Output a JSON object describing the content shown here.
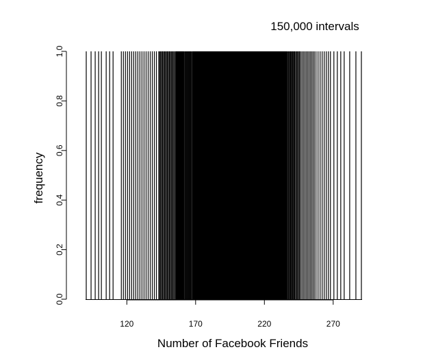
{
  "chart_data": {
    "type": "bar",
    "title": "150,000 intervals",
    "xlabel": "Number of Facebook Friends",
    "ylabel": "frequency",
    "xlim": [
      90,
      291
    ],
    "ylim": [
      0,
      1
    ],
    "x_ticks": [
      120,
      170,
      220,
      270
    ],
    "y_ticks": [
      0.0,
      0.2,
      0.4,
      0.6,
      0.8,
      1.0
    ],
    "y_tick_labels": [
      "0.0",
      "0.2",
      "0.4",
      "0.6",
      "0.8",
      "1.0"
    ],
    "bar_value": 1.0,
    "x": [
      90.5,
      94,
      97,
      99.5,
      101.5,
      105,
      107.5,
      110,
      116,
      117.5,
      119,
      120.5,
      122,
      123.5,
      125,
      126.5,
      128,
      129.5,
      131,
      132.5,
      134,
      135.5,
      137,
      138.5,
      140,
      141.5,
      143.2,
      143.9,
      144.6,
      145.3,
      146,
      146.7,
      147.4,
      148.1,
      148.8,
      149.5,
      150.2,
      150.9,
      151.6,
      152.3,
      153,
      153.7,
      154.4,
      155.2,
      155.7,
      156.2,
      156.7,
      157.2,
      157.7,
      158.2,
      158.7,
      159.2,
      159.7,
      160.2,
      160.7,
      161.2,
      161.7,
      162.3,
      162.8,
      163.3,
      163.8,
      164.3,
      164.8,
      165.3,
      165.8,
      166.3,
      166.8,
      232,
      232.5,
      233,
      233.5,
      234,
      234.5,
      235,
      235.5,
      236,
      236.6,
      237.2,
      237.8,
      238.4,
      239,
      239.6,
      240.2,
      240.8,
      241.4,
      242,
      242.7,
      243.4,
      244.1,
      244.8,
      245.5,
      246.3,
      247.3,
      248.3,
      249.3,
      250.3,
      251.3,
      252.3,
      253.3,
      254.3,
      255.3,
      256.3,
      257.5,
      259,
      260.5,
      262,
      263.5,
      265,
      266.5,
      268,
      270.5,
      273,
      275.5,
      278,
      282,
      286.5,
      290.5
    ]
  }
}
